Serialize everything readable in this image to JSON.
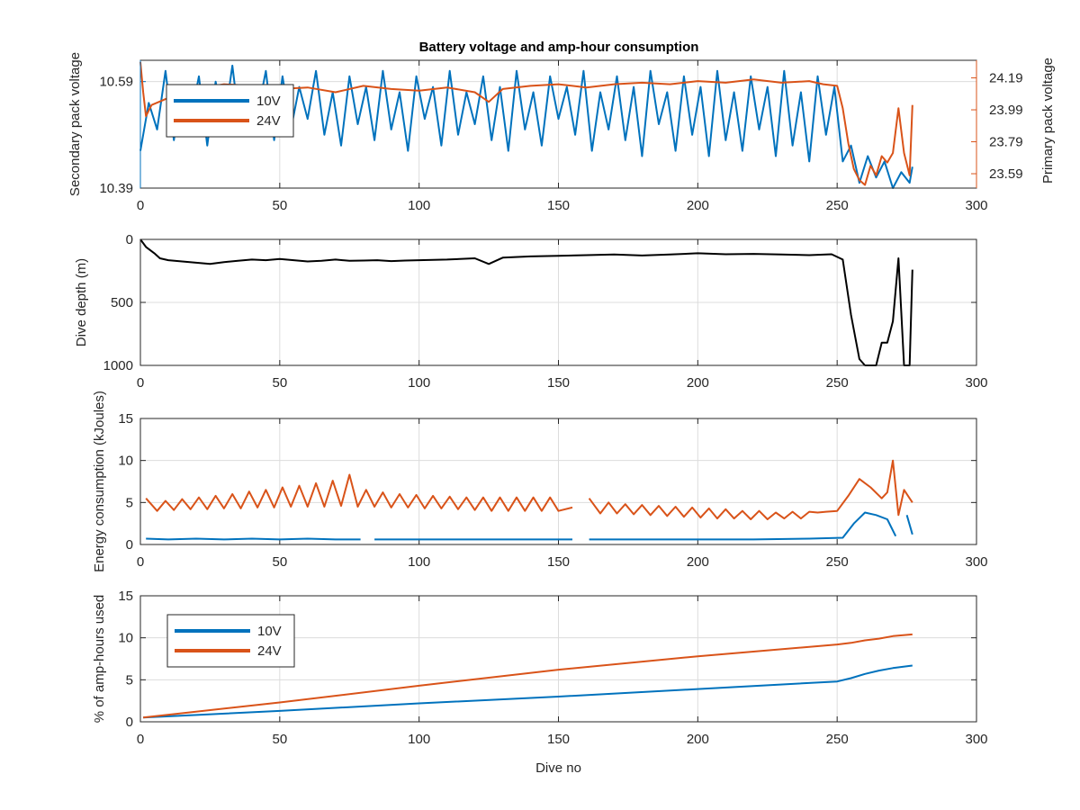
{
  "figure": {
    "title": "Battery voltage and amp-hour consumption",
    "colors": {
      "blue": "#0072BD",
      "orange": "#D95319",
      "black": "#000000"
    }
  },
  "chart_data": [
    {
      "type": "line",
      "title": "Battery voltage and amp-hour consumption",
      "xlabel": "",
      "ylabel_left": "Secondary pack voltage",
      "ylabel_right": "Primary pack voltage",
      "xlim": [
        0,
        300
      ],
      "xticks": [
        "0",
        "50",
        "100",
        "150",
        "200",
        "250",
        "300"
      ],
      "ylim_left": [
        10.39,
        10.63
      ],
      "yticks_left": [
        "10.39",
        "10.59"
      ],
      "ylim_right": [
        23.5,
        24.3
      ],
      "yticks_right": [
        "23.59",
        "23.79",
        "23.99",
        "24.19"
      ],
      "grid": true,
      "legend": {
        "position": "top-left",
        "entries": [
          "10V",
          "24V"
        ]
      },
      "series": [
        {
          "name": "10V",
          "axis": "left",
          "color": "#0072BD",
          "x": [
            0,
            3,
            6,
            9,
            12,
            15,
            18,
            21,
            24,
            27,
            30,
            33,
            36,
            39,
            42,
            45,
            48,
            51,
            54,
            57,
            60,
            63,
            66,
            69,
            72,
            75,
            78,
            81,
            84,
            87,
            90,
            93,
            96,
            99,
            102,
            105,
            108,
            111,
            114,
            117,
            120,
            123,
            126,
            129,
            132,
            135,
            138,
            141,
            144,
            147,
            150,
            153,
            156,
            159,
            162,
            165,
            168,
            171,
            174,
            177,
            180,
            183,
            186,
            189,
            192,
            195,
            198,
            201,
            204,
            207,
            210,
            213,
            216,
            219,
            222,
            225,
            228,
            231,
            234,
            237,
            240,
            243,
            246,
            249,
            252,
            255,
            258,
            261,
            264,
            267,
            270,
            273,
            276,
            277
          ],
          "y": [
            10.46,
            10.55,
            10.5,
            10.61,
            10.48,
            10.58,
            10.52,
            10.6,
            10.47,
            10.59,
            10.51,
            10.62,
            10.49,
            10.57,
            10.53,
            10.61,
            10.48,
            10.6,
            10.5,
            10.58,
            10.52,
            10.61,
            10.49,
            10.57,
            10.47,
            10.6,
            10.51,
            10.58,
            10.48,
            10.61,
            10.5,
            10.57,
            10.46,
            10.6,
            10.52,
            10.58,
            10.47,
            10.61,
            10.49,
            10.57,
            10.51,
            10.6,
            10.48,
            10.58,
            10.46,
            10.61,
            10.5,
            10.57,
            10.47,
            10.6,
            10.52,
            10.58,
            10.49,
            10.61,
            10.46,
            10.57,
            10.5,
            10.6,
            10.48,
            10.58,
            10.45,
            10.61,
            10.51,
            10.57,
            10.46,
            10.6,
            10.49,
            10.58,
            10.45,
            10.61,
            10.48,
            10.57,
            10.46,
            10.6,
            10.5,
            10.58,
            10.45,
            10.61,
            10.47,
            10.57,
            10.44,
            10.6,
            10.49,
            10.58,
            10.44,
            10.47,
            10.4,
            10.45,
            10.41,
            10.44,
            10.39,
            10.42,
            10.4,
            10.43
          ]
        },
        {
          "name": "24V",
          "axis": "right",
          "color": "#D95319",
          "x": [
            0,
            1,
            2,
            4,
            8,
            12,
            20,
            30,
            40,
            50,
            60,
            70,
            80,
            90,
            100,
            110,
            120,
            125,
            130,
            140,
            150,
            160,
            170,
            180,
            190,
            200,
            210,
            220,
            230,
            240,
            245,
            250,
            252,
            254,
            256,
            258,
            260,
            262,
            264,
            266,
            268,
            270,
            272,
            274,
            276,
            277
          ],
          "y": [
            24.29,
            24.1,
            23.95,
            24.02,
            24.05,
            24.08,
            24.12,
            24.15,
            24.14,
            24.12,
            24.13,
            24.1,
            24.14,
            24.12,
            24.11,
            24.13,
            24.1,
            24.04,
            24.12,
            24.14,
            24.15,
            24.13,
            24.15,
            24.16,
            24.15,
            24.17,
            24.16,
            24.18,
            24.16,
            24.17,
            24.15,
            24.14,
            24.0,
            23.78,
            23.62,
            23.55,
            23.52,
            23.64,
            23.58,
            23.7,
            23.66,
            23.72,
            24.0,
            23.72,
            23.58,
            24.02
          ]
        }
      ]
    },
    {
      "type": "line",
      "xlabel": "",
      "ylabel": "Dive depth (m)",
      "xlim": [
        0,
        300
      ],
      "xticks": [
        "0",
        "50",
        "100",
        "150",
        "200",
        "250",
        "300"
      ],
      "ylim": [
        0,
        1000
      ],
      "yreverse": true,
      "yticks": [
        "0",
        "500",
        "1000"
      ],
      "grid": true,
      "series": [
        {
          "name": "",
          "color": "#000000",
          "x": [
            0,
            2,
            5,
            7,
            10,
            15,
            20,
            25,
            30,
            35,
            40,
            45,
            50,
            55,
            60,
            65,
            70,
            75,
            80,
            85,
            90,
            95,
            100,
            110,
            120,
            125,
            130,
            140,
            150,
            160,
            170,
            180,
            190,
            200,
            210,
            220,
            230,
            240,
            248,
            252,
            255,
            258,
            260,
            262,
            264,
            266,
            268,
            270,
            272,
            274,
            276,
            277
          ],
          "y": [
            0,
            60,
            110,
            150,
            165,
            175,
            185,
            195,
            180,
            170,
            160,
            165,
            155,
            165,
            175,
            170,
            160,
            170,
            168,
            165,
            172,
            168,
            165,
            160,
            150,
            195,
            145,
            135,
            130,
            125,
            120,
            128,
            120,
            110,
            118,
            115,
            120,
            125,
            118,
            160,
            600,
            950,
            1000,
            1000,
            1000,
            820,
            820,
            650,
            150,
            1000,
            1000,
            240
          ]
        }
      ]
    },
    {
      "type": "line",
      "xlabel": "",
      "ylabel": "Energy consumption (kJoules)",
      "xlim": [
        0,
        300
      ],
      "xticks": [
        "0",
        "50",
        "100",
        "150",
        "200",
        "250",
        "300"
      ],
      "ylim": [
        0,
        15
      ],
      "yticks": [
        "0",
        "5",
        "10",
        "15"
      ],
      "grid": true,
      "series": [
        {
          "name": "24V",
          "color": "#D95319",
          "x": [
            2,
            6,
            9,
            12,
            15,
            18,
            21,
            24,
            27,
            30,
            33,
            36,
            39,
            42,
            45,
            48,
            51,
            54,
            57,
            60,
            63,
            66,
            69,
            72,
            75,
            78,
            81,
            84,
            87,
            90,
            93,
            96,
            99,
            102,
            105,
            108,
            111,
            114,
            117,
            120,
            123,
            126,
            129,
            132,
            135,
            138,
            141,
            144,
            147,
            150,
            155,
            161,
            165,
            168,
            171,
            174,
            177,
            180,
            183,
            186,
            189,
            192,
            195,
            198,
            201,
            204,
            207,
            210,
            213,
            216,
            219,
            222,
            225,
            228,
            231,
            234,
            237,
            240,
            243,
            246,
            250,
            254,
            258,
            262,
            266,
            268,
            270,
            272,
            274,
            276,
            277
          ],
          "y": [
            5.5,
            4.0,
            5.2,
            4.1,
            5.4,
            4.2,
            5.6,
            4.2,
            5.8,
            4.3,
            6.0,
            4.3,
            6.3,
            4.4,
            6.5,
            4.4,
            6.8,
            4.5,
            7.0,
            4.5,
            7.3,
            4.5,
            7.6,
            4.6,
            8.3,
            4.5,
            6.5,
            4.5,
            6.2,
            4.4,
            6.0,
            4.4,
            5.9,
            4.3,
            5.8,
            4.3,
            5.7,
            4.2,
            5.6,
            4.1,
            5.6,
            4.0,
            5.6,
            4.0,
            5.6,
            4.0,
            5.6,
            4.0,
            5.6,
            4.0,
            4.4,
            5.5,
            3.7,
            5.0,
            3.7,
            4.8,
            3.6,
            4.7,
            3.5,
            4.6,
            3.4,
            4.5,
            3.3,
            4.4,
            3.2,
            4.3,
            3.1,
            4.2,
            3.1,
            4.0,
            3.0,
            4.0,
            3.0,
            3.8,
            3.1,
            3.9,
            3.1,
            3.9,
            3.8,
            3.9,
            4.0,
            5.8,
            7.8,
            6.8,
            5.5,
            6.2,
            10.0,
            3.5,
            6.5,
            5.5,
            5.0
          ],
          "gaps_after": [
            79,
            155,
            271
          ]
        },
        {
          "name": "10V",
          "color": "#0072BD",
          "x": [
            2,
            10,
            20,
            30,
            40,
            50,
            60,
            70,
            79,
            84,
            100,
            120,
            140,
            155,
            161,
            180,
            200,
            220,
            240,
            252,
            256,
            260,
            264,
            268,
            271,
            275,
            277
          ],
          "y": [
            0.7,
            0.6,
            0.7,
            0.6,
            0.7,
            0.6,
            0.7,
            0.6,
            0.6,
            0.6,
            0.6,
            0.6,
            0.6,
            0.6,
            0.6,
            0.6,
            0.6,
            0.6,
            0.7,
            0.8,
            2.5,
            3.8,
            3.5,
            3.0,
            1.0,
            3.5,
            1.2
          ],
          "gaps_after": [
            79,
            155,
            271
          ]
        }
      ]
    },
    {
      "type": "line",
      "xlabel": "Dive no",
      "ylabel": "% of amp-hours used",
      "xlim": [
        0,
        300
      ],
      "xticks": [
        "0",
        "50",
        "100",
        "150",
        "200",
        "250",
        "300"
      ],
      "ylim": [
        0,
        15
      ],
      "yticks": [
        "0",
        "5",
        "10",
        "15"
      ],
      "grid": true,
      "legend": {
        "position": "top-left",
        "entries": [
          "10V",
          "24V"
        ]
      },
      "series": [
        {
          "name": "10V",
          "color": "#0072BD",
          "x": [
            1,
            50,
            100,
            150,
            200,
            250,
            255,
            260,
            265,
            270,
            277
          ],
          "y": [
            0.5,
            1.3,
            2.2,
            3.0,
            3.9,
            4.8,
            5.2,
            5.7,
            6.1,
            6.4,
            6.7
          ]
        },
        {
          "name": "24V",
          "color": "#D95319",
          "x": [
            1,
            50,
            100,
            150,
            200,
            250,
            255,
            260,
            265,
            270,
            277
          ],
          "y": [
            0.5,
            2.3,
            4.3,
            6.2,
            7.8,
            9.2,
            9.4,
            9.7,
            9.9,
            10.2,
            10.4
          ]
        }
      ]
    }
  ]
}
